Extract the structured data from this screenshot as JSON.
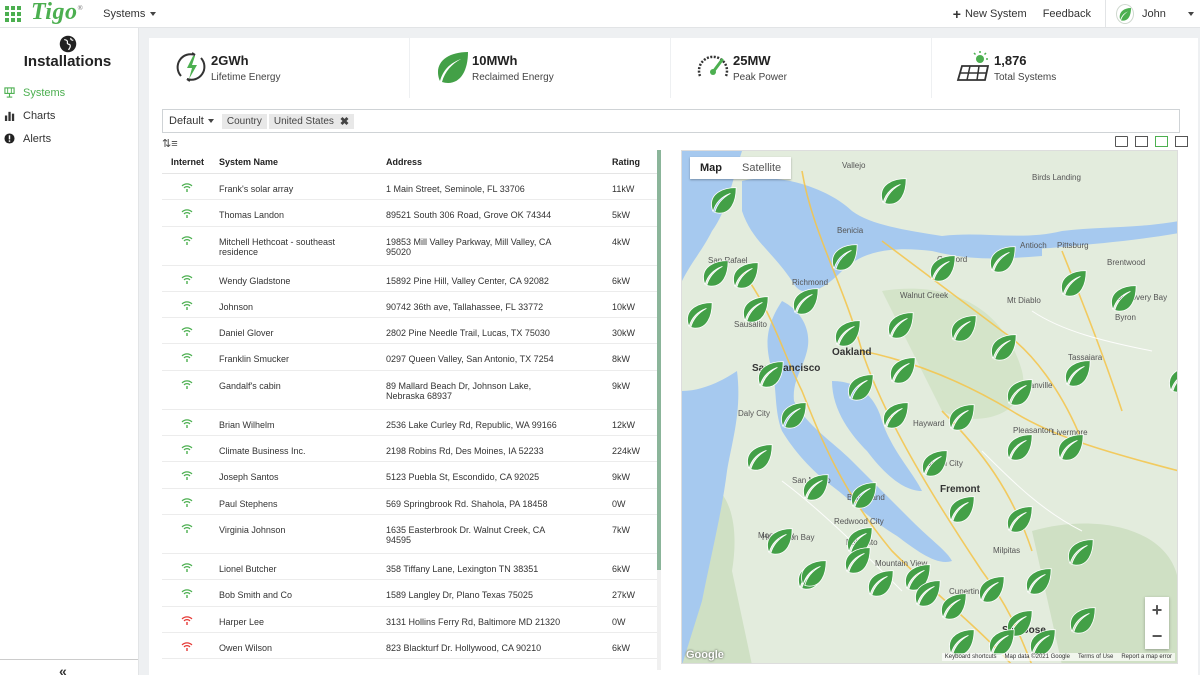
{
  "topbar": {
    "logo": "Tigo",
    "systems_menu": "Systems",
    "new_system": "New System",
    "feedback": "Feedback",
    "user_name": "John"
  },
  "sidebar": {
    "title": "Installations",
    "items": [
      {
        "label": "Systems",
        "icon": "solar-panel-icon",
        "active": true
      },
      {
        "label": "Charts",
        "icon": "bar-chart-icon",
        "active": false
      },
      {
        "label": "Alerts",
        "icon": "alert-icon",
        "active": false
      }
    ],
    "collapse": "«"
  },
  "stats": [
    {
      "value": "2GWh",
      "label": "Lifetime Energy",
      "icon": "energy-bolt-icon"
    },
    {
      "value": "10MWh",
      "label": "Reclaimed Energy",
      "icon": "leaf-icon"
    },
    {
      "value": "25MW",
      "label": "Peak Power",
      "icon": "gauge-icon"
    },
    {
      "value": "1,876",
      "label": "Total Systems",
      "icon": "solar-sun-icon"
    }
  ],
  "filter": {
    "default_label": "Default",
    "chip_country": "Country",
    "chip_value": "United States"
  },
  "table": {
    "headers": {
      "internet": "Internet",
      "name": "System Name",
      "address": "Address",
      "rating": "Rating"
    },
    "rows": [
      {
        "name": "Frank's solar array",
        "address": "1 Main Street, Seminole, FL 33706",
        "rating": "11kW",
        "status": "online"
      },
      {
        "name": "Thomas Landon",
        "address": "89521 South 306 Road, Grove OK 74344",
        "rating": "5kW",
        "status": "online"
      },
      {
        "name": "Mitchell Hethcoat - southeast residence",
        "address": "19853 Mill Valley Parkway, Mill Valley, CA 95020",
        "rating": "4kW",
        "status": "online"
      },
      {
        "name": "Wendy Gladstone",
        "address": "15892 Pine Hill, Valley Center, CA 92082",
        "rating": "6kW",
        "status": "online"
      },
      {
        "name": "Johnson",
        "address": "90742 36th ave, Tallahassee, FL 33772",
        "rating": "10kW",
        "status": "online"
      },
      {
        "name": "Daniel Glover",
        "address": "2802 Pine Needle Trail, Lucas, TX 75030",
        "rating": "30kW",
        "status": "online"
      },
      {
        "name": "Franklin Smucker",
        "address": "0297 Queen Valley, San Antonio, TX 7254",
        "rating": "8kW",
        "status": "online"
      },
      {
        "name": "Gandalf's cabin",
        "address": "89 Mallard Beach Dr, Johnson Lake, Nebraska 68937",
        "rating": "9kW",
        "status": "online"
      },
      {
        "name": "Brian Wilhelm",
        "address": "2536 Lake Curley Rd, Republic, WA 99166",
        "rating": "12kW",
        "status": "online"
      },
      {
        "name": "Climate Business Inc.",
        "address": "2198 Robins Rd, Des Moines, IA 52233",
        "rating": "224kW",
        "status": "online"
      },
      {
        "name": "Joseph Santos",
        "address": "5123 Puebla St, Escondido, CA 92025",
        "rating": "9kW",
        "status": "online"
      },
      {
        "name": "Paul Stephens",
        "address": "569 Springbrook Rd. Shahola, PA 18458",
        "rating": "0W",
        "status": "online"
      },
      {
        "name": "Virginia Johnson",
        "address": "1635 Easterbrook Dr. Walnut Creek, CA 94595",
        "rating": "7kW",
        "status": "online"
      },
      {
        "name": "Lionel Butcher",
        "address": "358 Tiffany Lane, Lexington TN 38351",
        "rating": "6kW",
        "status": "online"
      },
      {
        "name": "Bob Smith and Co",
        "address": "1589 Langley Dr, Plano Texas 75025",
        "rating": "27kW",
        "status": "online"
      },
      {
        "name": "Harper Lee",
        "address": "3131 Hollins Ferry Rd, Baltimore MD 21320",
        "rating": "0W",
        "status": "offline"
      },
      {
        "name": "Owen Wilson",
        "address": "823 Blackturf Dr. Hollywood, CA 90210",
        "rating": "6kW",
        "status": "offline"
      }
    ]
  },
  "map": {
    "tabs": [
      "Map",
      "Satellite"
    ],
    "zoom_in": "+",
    "zoom_out": "−",
    "google": "Google",
    "footer": [
      "Keyboard shortcuts",
      "Map data ©2021 Google",
      "Terms of Use",
      "Report a map error"
    ],
    "places": [
      {
        "name": "San Francisco",
        "big": true
      },
      {
        "name": "Oakland",
        "big": true
      },
      {
        "name": "San Jose",
        "big": true
      },
      {
        "name": "Fremont",
        "big": true
      },
      {
        "name": "Vallejo",
        "big": false
      },
      {
        "name": "Concord",
        "big": false
      },
      {
        "name": "Antioch",
        "big": false
      },
      {
        "name": "Walnut Creek",
        "big": false
      },
      {
        "name": "Hayward",
        "big": false
      },
      {
        "name": "Livermore",
        "big": false
      },
      {
        "name": "Pleasanton",
        "big": false
      },
      {
        "name": "Daly City",
        "big": false
      },
      {
        "name": "San Mateo",
        "big": false
      },
      {
        "name": "Mountain View",
        "big": false
      },
      {
        "name": "Milpitas",
        "big": false
      },
      {
        "name": "Redwood City",
        "big": false
      },
      {
        "name": "Palo Alto",
        "big": false
      },
      {
        "name": "Mt Diablo",
        "big": false
      },
      {
        "name": "San Rafael",
        "big": false
      },
      {
        "name": "Richmond",
        "big": false
      },
      {
        "name": "Sausalito",
        "big": false
      },
      {
        "name": "Union City",
        "big": false
      },
      {
        "name": "Danville",
        "big": false
      },
      {
        "name": "Brentwood",
        "big": false
      },
      {
        "name": "Pittsburg",
        "big": false
      },
      {
        "name": "Benicia",
        "big": false
      },
      {
        "name": "Birds Landing",
        "big": false
      },
      {
        "name": "Half Moon Bay",
        "big": false
      },
      {
        "name": "Cupertino",
        "big": false
      },
      {
        "name": "Tassajara",
        "big": false
      },
      {
        "name": "Byron",
        "big": false
      },
      {
        "name": "Discovery Bay",
        "big": false
      },
      {
        "name": "Bair Island",
        "big": false
      },
      {
        "name": "Moon Bay",
        "big": false
      }
    ]
  },
  "colors": {
    "brand": "#4caf50",
    "leaf": "#43a047",
    "water": "#a6c9ef",
    "land": "#e3ecdd",
    "offline": "#e53935"
  }
}
